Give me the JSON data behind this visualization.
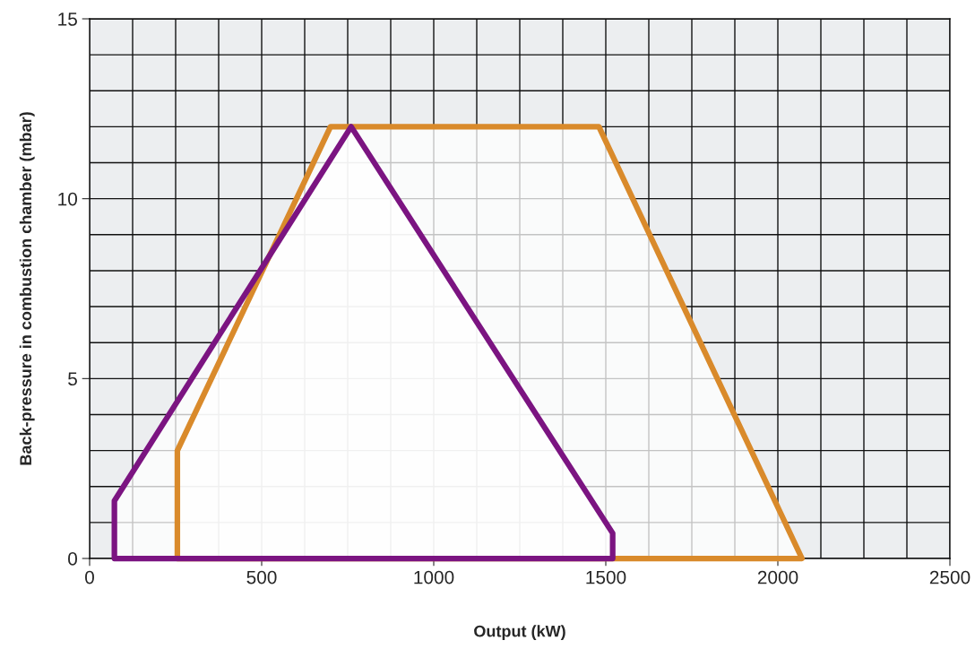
{
  "chart_data": {
    "type": "area",
    "xlabel": "Output (kW)",
    "ylabel": "Back-pressure in combustion chamber (mbar)",
    "xlim": [
      0,
      2500
    ],
    "ylim": [
      0,
      15
    ],
    "xticks": [
      0,
      500,
      1000,
      1500,
      2000,
      2500
    ],
    "yticks": [
      0,
      5,
      10,
      15
    ],
    "grid": true,
    "marker": "none",
    "line_style": "solid",
    "series": [
      {
        "color": "#d98a2b",
        "x": [
          255,
          255,
          700,
          1480,
          2070,
          255
        ],
        "values": [
          0,
          3,
          12,
          12,
          0,
          0
        ]
      },
      {
        "color": "#7b1481",
        "x": [
          72,
          72,
          760,
          1520,
          1520,
          72
        ],
        "values": [
          0,
          1.6,
          12,
          0.7,
          0,
          0
        ]
      }
    ]
  }
}
